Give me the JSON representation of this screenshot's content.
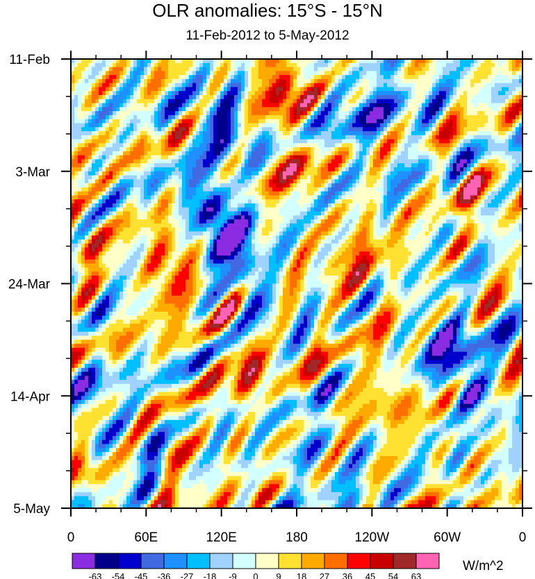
{
  "chart_data": {
    "type": "heatmap",
    "title": "OLR anomalies: 15°S - 15°N",
    "subtitle": "11-Feb-2012 to 5-May-2012",
    "x_ticks": [
      "0",
      "60E",
      "120E",
      "180",
      "120W",
      "60W",
      "0"
    ],
    "x_tick_values": [
      0,
      60,
      120,
      180,
      240,
      300,
      360
    ],
    "y_ticks": [
      "11-Feb",
      "3-Mar",
      "24-Mar",
      "14-Apr",
      "5-May"
    ],
    "y_tick_day_index": [
      0,
      21,
      42,
      63,
      84
    ],
    "xlim": [
      0,
      360
    ],
    "ylim_days": [
      0,
      84
    ],
    "colorbar": {
      "units": "W/m^2",
      "levels": [
        -63,
        -54,
        -45,
        -36,
        -27,
        -18,
        -9,
        0,
        9,
        18,
        27,
        36,
        45,
        54,
        63
      ],
      "colors": [
        "#8b2be2",
        "#00008b",
        "#0000cd",
        "#4169e1",
        "#1e90ff",
        "#00bfff",
        "#a0d2ff",
        "#d2ffff",
        "#ffffc8",
        "#ffe132",
        "#ffaa00",
        "#ff6e00",
        "#ff0000",
        "#c80000",
        "#a02828",
        "#ff64b4"
      ]
    },
    "features": [
      {
        "lon": 120,
        "day": 12,
        "amp": -58,
        "rx": 22,
        "ry": 5
      },
      {
        "lon": 110,
        "day": 28,
        "amp": -60,
        "rx": 18,
        "ry": 6
      },
      {
        "lon": 130,
        "day": 34,
        "amp": -62,
        "rx": 18,
        "ry": 6
      },
      {
        "lon": 145,
        "day": 44,
        "amp": -40,
        "rx": 14,
        "ry": 5
      },
      {
        "lon": 300,
        "day": 53,
        "amp": -52,
        "rx": 26,
        "ry": 6
      },
      {
        "lon": 320,
        "day": 62,
        "amp": -50,
        "rx": 18,
        "ry": 4
      },
      {
        "lon": 170,
        "day": 5,
        "amp": 50,
        "rx": 22,
        "ry": 5
      },
      {
        "lon": 175,
        "day": 18,
        "amp": 34,
        "rx": 14,
        "ry": 8
      },
      {
        "lon": 80,
        "day": 40,
        "amp": 42,
        "rx": 20,
        "ry": 8
      },
      {
        "lon": 140,
        "day": 57,
        "amp": 34,
        "rx": 18,
        "ry": 7
      },
      {
        "lon": 230,
        "day": 38,
        "amp": 26,
        "rx": 25,
        "ry": 8
      },
      {
        "lon": 10,
        "day": 33,
        "amp": 28,
        "rx": 12,
        "ry": 8
      },
      {
        "lon": 15,
        "day": 78,
        "amp": 32,
        "rx": 12,
        "ry": 5
      },
      {
        "lon": 320,
        "day": 26,
        "amp": 24,
        "rx": 15,
        "ry": 6
      },
      {
        "lon": 240,
        "day": 10,
        "amp": -30,
        "rx": 40,
        "ry": 8
      },
      {
        "lon": 20,
        "day": 65,
        "amp": -26,
        "rx": 15,
        "ry": 8
      },
      {
        "lon": 60,
        "day": 73,
        "amp": -30,
        "rx": 12,
        "ry": 5
      },
      {
        "lon": 250,
        "day": 62,
        "amp": 24,
        "rx": 30,
        "ry": 8
      },
      {
        "lon": 200,
        "day": 74,
        "amp": -20,
        "rx": 30,
        "ry": 7
      },
      {
        "lon": 90,
        "day": 76,
        "amp": 20,
        "rx": 18,
        "ry": 6
      }
    ]
  }
}
